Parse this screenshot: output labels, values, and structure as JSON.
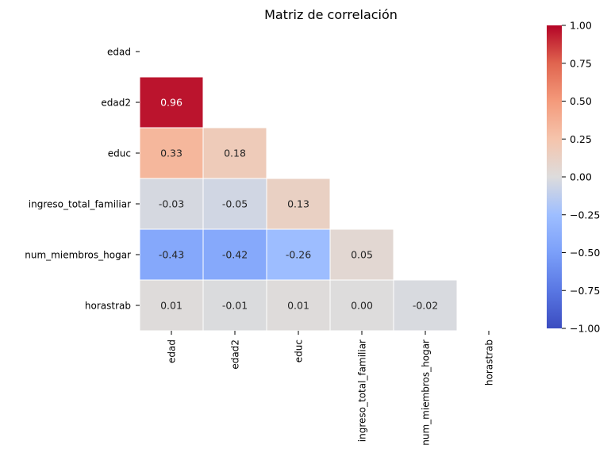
{
  "chart_data": {
    "type": "heatmap",
    "title": "Matriz de correlación",
    "variables": [
      "edad",
      "edad2",
      "educ",
      "ingreso_total_familiar",
      "num_miembros_hogar",
      "horastrab"
    ],
    "mask": "upper-triangle-and-diagonal",
    "colormap": "coolwarm",
    "vmin": -1.0,
    "vmax": 1.0,
    "cells": [
      {
        "row": 1,
        "col": 0,
        "value": 0.96,
        "label": "0.96"
      },
      {
        "row": 2,
        "col": 0,
        "value": 0.33,
        "label": "0.33"
      },
      {
        "row": 2,
        "col": 1,
        "value": 0.18,
        "label": "0.18"
      },
      {
        "row": 3,
        "col": 0,
        "value": -0.03,
        "label": "-0.03"
      },
      {
        "row": 3,
        "col": 1,
        "value": -0.05,
        "label": "-0.05"
      },
      {
        "row": 3,
        "col": 2,
        "value": 0.13,
        "label": "0.13"
      },
      {
        "row": 4,
        "col": 0,
        "value": -0.43,
        "label": "-0.43"
      },
      {
        "row": 4,
        "col": 1,
        "value": -0.42,
        "label": "-0.42"
      },
      {
        "row": 4,
        "col": 2,
        "value": -0.26,
        "label": "-0.26"
      },
      {
        "row": 4,
        "col": 3,
        "value": 0.05,
        "label": "0.05"
      },
      {
        "row": 5,
        "col": 0,
        "value": 0.01,
        "label": "0.01"
      },
      {
        "row": 5,
        "col": 1,
        "value": -0.01,
        "label": "-0.01"
      },
      {
        "row": 5,
        "col": 2,
        "value": 0.01,
        "label": "0.01"
      },
      {
        "row": 5,
        "col": 3,
        "value": 0.0,
        "label": "0.00"
      },
      {
        "row": 5,
        "col": 4,
        "value": -0.02,
        "label": "-0.02"
      }
    ],
    "colorbar": {
      "ticks": [
        1.0,
        0.75,
        0.5,
        0.25,
        0.0,
        -0.25,
        -0.5,
        -0.75,
        -1.0
      ],
      "tick_labels": [
        "1.00",
        "0.75",
        "0.50",
        "0.25",
        "0.00",
        "−0.25",
        "−0.50",
        "−0.75",
        "−1.00"
      ]
    }
  }
}
